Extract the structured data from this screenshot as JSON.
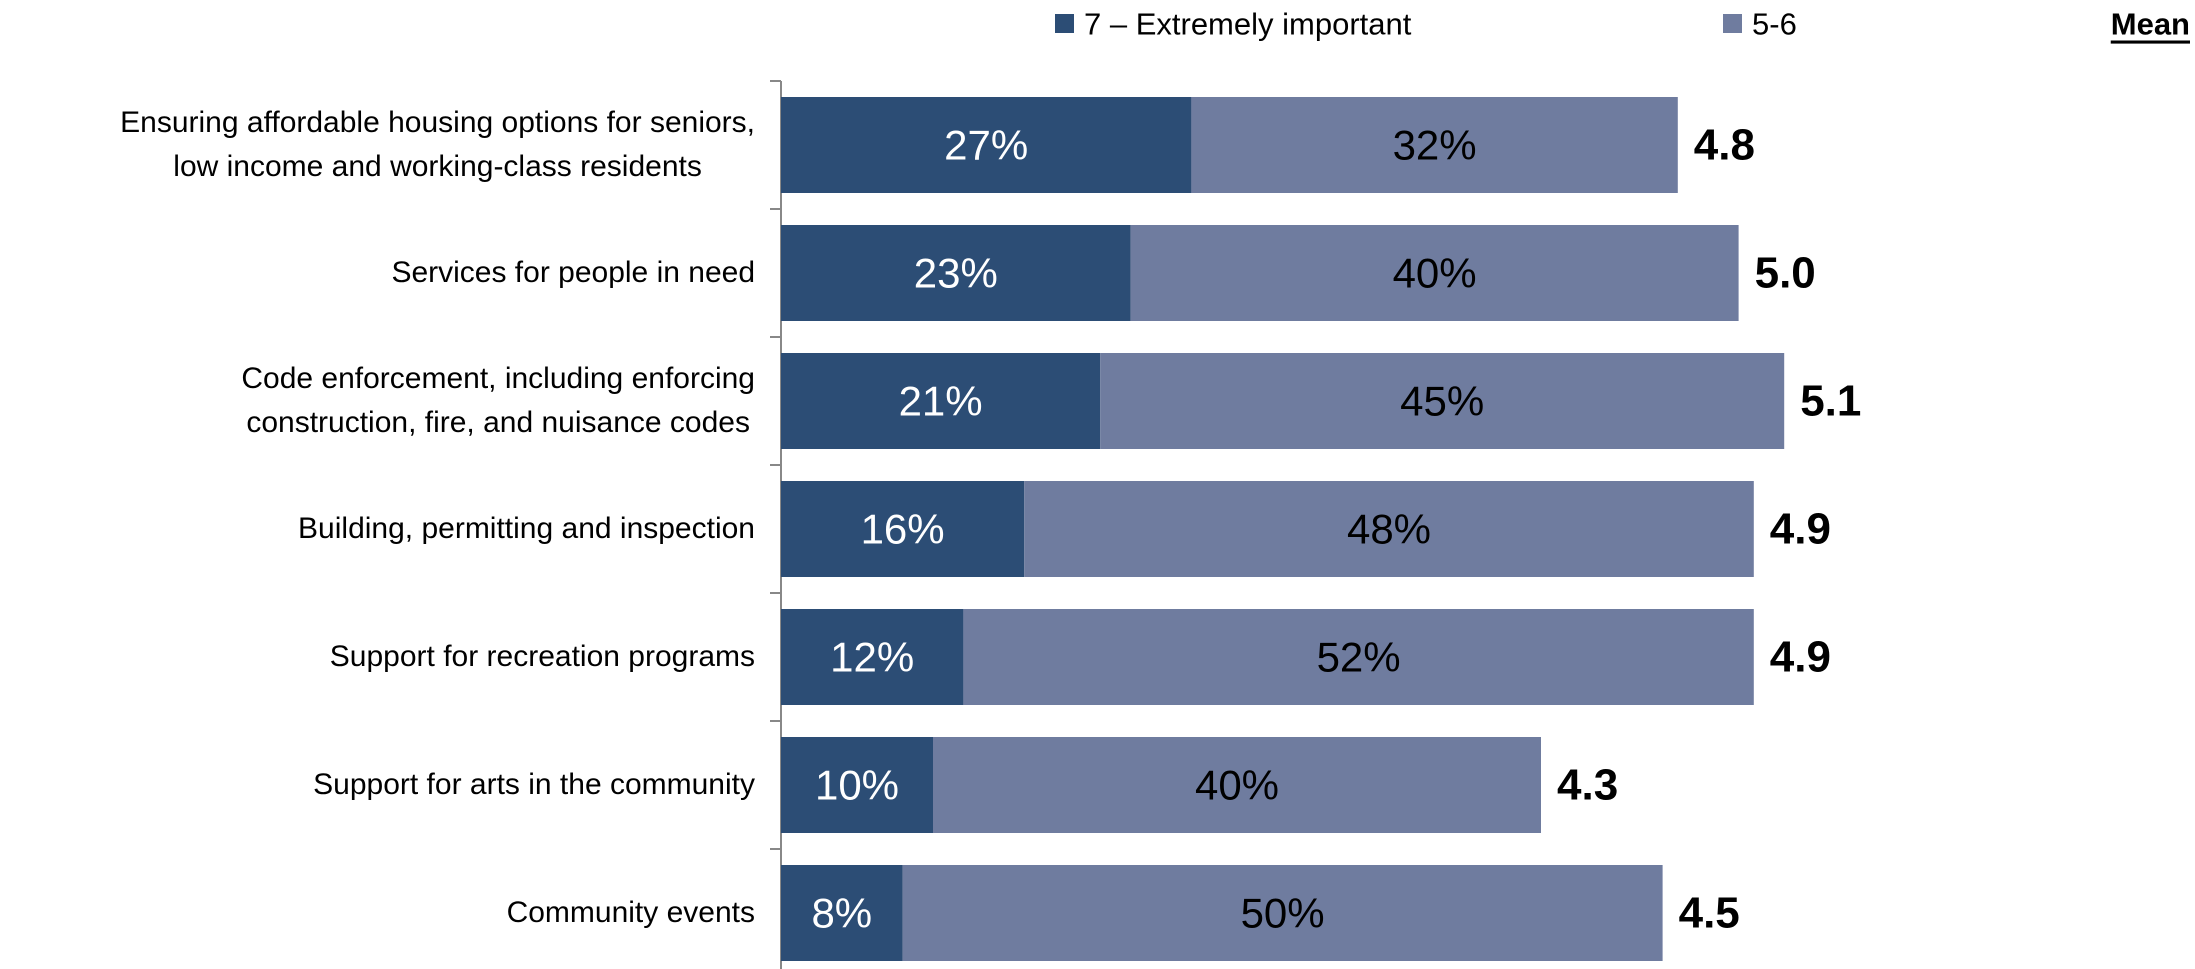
{
  "chart_data": {
    "type": "stacked-bar-horizontal",
    "categories": [
      "Ensuring affordable housing options for seniors,\nlow income and working-class residents",
      "Services for people in need",
      "Code enforcement, including enforcing\nconstruction, fire, and nuisance codes",
      "Building, permitting and inspection",
      "Support for recreation programs",
      "Support for arts in the community",
      "Community events"
    ],
    "series": [
      {
        "name": "7 – Extremely important",
        "color": "#2c4d75",
        "label_color": "#ffffff",
        "values": [
          27,
          23,
          21,
          16,
          12,
          10,
          8
        ],
        "value_labels": [
          "27%",
          "23%",
          "21%",
          "16%",
          "12%",
          "10%",
          "8%"
        ]
      },
      {
        "name": "5-6",
        "color": "#6f7c9f",
        "label_color": "#000000",
        "values": [
          32,
          40,
          45,
          48,
          52,
          40,
          50
        ],
        "value_labels": [
          "32%",
          "40%",
          "45%",
          "48%",
          "52%",
          "40%",
          "50%"
        ]
      }
    ],
    "mean": {
      "name": "Mean",
      "values": [
        4.8,
        5.0,
        5.1,
        4.9,
        4.9,
        4.3,
        4.5
      ],
      "value_labels": [
        "4.8",
        "5.0",
        "5.1",
        "4.9",
        "4.9",
        "4.3",
        "4.5"
      ]
    }
  }
}
